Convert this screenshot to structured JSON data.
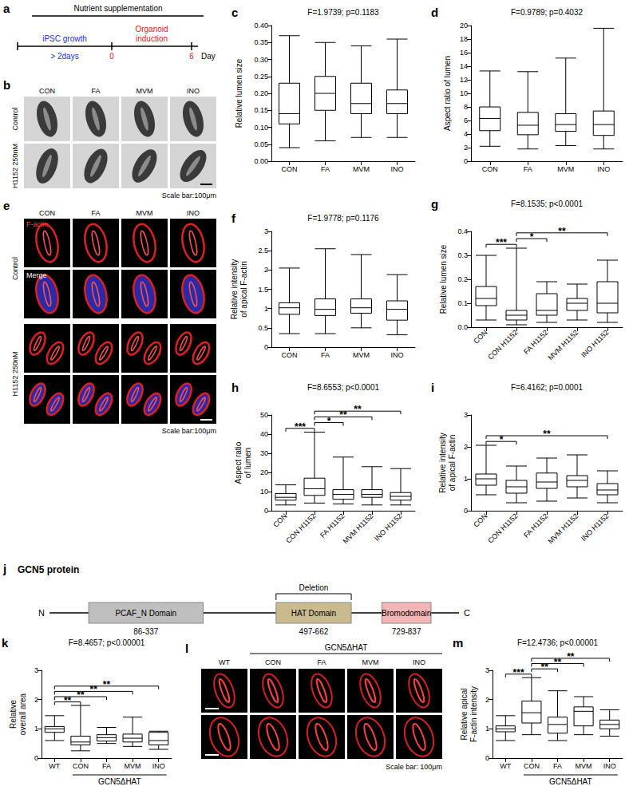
{
  "chart_data": [
    {
      "type": "boxplot",
      "panel_letter": "c",
      "title": "F=1.9739; p=0.1183",
      "y_label": "Relative lumen size",
      "categories": [
        "CON",
        "FA",
        "MVM",
        "INO"
      ],
      "values": [
        [
          0.04,
          0.11,
          0.14,
          0.23,
          0.37
        ],
        [
          0.06,
          0.15,
          0.2,
          0.25,
          0.35
        ],
        [
          0.07,
          0.14,
          0.17,
          0.23,
          0.34
        ],
        [
          0.07,
          0.14,
          0.17,
          0.21,
          0.36
        ]
      ],
      "color": "#000000",
      "ylim": [
        0,
        0.4
      ],
      "yticks": [
        {
          "value": 0,
          "label": "0.00"
        },
        0.05,
        {
          "value": 0.1,
          "label": "0.10"
        },
        0.15,
        {
          "value": 0.2,
          "label": "0.20"
        },
        0.25,
        {
          "value": 0.3,
          "label": "0.30"
        },
        0.35,
        {
          "value": 0.4,
          "label": "0.40"
        }
      ]
    },
    {
      "type": "boxplot",
      "panel_letter": "d",
      "title": "F=0.9789; p=0.4032",
      "y_label": "Aspect ratio of lumen",
      "categories": [
        "CON",
        "FA",
        "MVM",
        "INO"
      ],
      "values": [
        [
          2.2,
          4.5,
          6.3,
          8.0,
          13.3
        ],
        [
          1.8,
          3.9,
          5.3,
          7.2,
          13.2
        ],
        [
          2.3,
          4.4,
          5.4,
          7.0,
          15.2
        ],
        [
          1.8,
          3.8,
          5.4,
          7.4,
          19.6
        ]
      ],
      "color": "#000000",
      "ylim": [
        0,
        20
      ],
      "yticks": [
        0,
        2,
        4,
        6,
        8,
        10,
        12,
        14,
        16,
        18,
        20
      ]
    },
    {
      "type": "boxplot",
      "panel_letter": "f",
      "title": "F=1.9778; p=0.1176",
      "y_label": "Relative intensity of apical F-actin",
      "categories": [
        "CON",
        "FA",
        "MVM",
        "INO"
      ],
      "values": [
        [
          0.35,
          0.85,
          1.02,
          1.15,
          2.05
        ],
        [
          0.35,
          0.82,
          0.98,
          1.25,
          2.55
        ],
        [
          0.5,
          0.88,
          1.02,
          1.25,
          2.4
        ],
        [
          0.32,
          0.7,
          0.98,
          1.2,
          1.88
        ]
      ],
      "color": "#000000",
      "ylim": [
        0,
        3
      ],
      "yticks": [
        0,
        0.5,
        1,
        1.5,
        2,
        2.5,
        3
      ]
    },
    {
      "type": "boxplot",
      "panel_letter": "g",
      "title": "F=8.1535; p<0.0001",
      "y_label": "Relative lumen size",
      "categories": [
        "CON",
        "CON H1152",
        "FA H1152",
        "MVM H1152",
        "INO H1152"
      ],
      "values": [
        [
          0.03,
          0.09,
          0.12,
          0.17,
          0.3
        ],
        [
          0.01,
          0.03,
          0.05,
          0.07,
          0.33
        ],
        [
          0.02,
          0.05,
          0.07,
          0.14,
          0.19
        ],
        [
          0.03,
          0.07,
          0.1,
          0.12,
          0.18
        ],
        [
          0.02,
          0.06,
          0.1,
          0.19,
          0.28
        ]
      ],
      "color": "#000000",
      "ylim": [
        0,
        0.4
      ],
      "yticks": [
        {
          "value": 0,
          "label": "0.0"
        },
        0.1,
        0.2,
        0.3,
        0.4
      ],
      "significance": [
        {
          "from": "CON",
          "to": "CON H1152",
          "label": "***"
        },
        {
          "from": "CON H1152",
          "to": "FA H1152",
          "label": "*"
        },
        {
          "from": "CON H1152",
          "to": "INO H1152",
          "label": "**"
        }
      ]
    },
    {
      "type": "boxplot",
      "panel_letter": "h",
      "title": "F=8.6553; p<0.0001",
      "y_label": "Aspect ratio of lumen",
      "categories": [
        "CON",
        "CON H1152",
        "FA H1152",
        "MVM H1152",
        "INO H1152"
      ],
      "values": [
        [
          3,
          5.5,
          7,
          9,
          13.5
        ],
        [
          4,
          8,
          11.5,
          17,
          41
        ],
        [
          3.5,
          6,
          8.5,
          11,
          28
        ],
        [
          3,
          7,
          8.5,
          11,
          23
        ],
        [
          3,
          5.5,
          7.5,
          9.5,
          22
        ]
      ],
      "color": "#000000",
      "ylim": [
        0,
        50
      ],
      "yticks": [
        0,
        10,
        20,
        30,
        40,
        50
      ],
      "significance": [
        {
          "from": "CON",
          "to": "CON H1152",
          "label": "***"
        },
        {
          "from": "CON H1152",
          "to": "FA H1152",
          "label": "*"
        },
        {
          "from": "CON H1152",
          "to": "MVM H1152",
          "label": "**"
        },
        {
          "from": "CON H1152",
          "to": "INO H1152",
          "label": "**"
        }
      ]
    },
    {
      "type": "boxplot",
      "panel_letter": "i",
      "title": "F=6.4162; p=0.0001",
      "y_label": "Relative intensity of apical F-actin",
      "categories": [
        "CON",
        "CON H1152",
        "FA H1152",
        "MVM H1152",
        "INO H1152"
      ],
      "values": [
        [
          0.5,
          0.8,
          1.0,
          1.15,
          2.05
        ],
        [
          0.25,
          0.55,
          0.75,
          0.95,
          1.4
        ],
        [
          0.3,
          0.7,
          0.9,
          1.18,
          1.65
        ],
        [
          0.4,
          0.75,
          0.95,
          1.1,
          1.75
        ],
        [
          0.25,
          0.5,
          0.65,
          0.85,
          1.25
        ]
      ],
      "color": "#000000",
      "ylim": [
        0,
        3
      ],
      "yticks": [
        0,
        1,
        2,
        3
      ],
      "significance": [
        {
          "from": "CON",
          "to": "CON H1152",
          "label": "*"
        },
        {
          "from": "CON",
          "to": "INO H1152",
          "label": "**"
        }
      ]
    },
    {
      "type": "boxplot",
      "panel_letter": "k",
      "title": "F=8.4657; p<0.00001",
      "y_label": "Relative overall area",
      "categories": [
        "WT",
        "CON",
        "FA",
        "MVM",
        "INO"
      ],
      "category_group": {
        "label": "GCN5ΔHAT",
        "from": "CON",
        "to": "INO"
      },
      "values": [
        [
          0.6,
          0.88,
          1.0,
          1.08,
          1.45
        ],
        [
          0.25,
          0.45,
          0.55,
          0.75,
          1.8
        ],
        [
          0.5,
          0.58,
          0.7,
          0.8,
          1.05
        ],
        [
          0.4,
          0.55,
          0.68,
          0.82,
          1.4
        ],
        [
          0.3,
          0.45,
          0.6,
          0.88,
          0.92
        ]
      ],
      "color": "#000000",
      "ylim": [
        0,
        3
      ],
      "yticks": [
        0,
        1,
        2,
        3
      ],
      "significance": [
        {
          "from": "WT",
          "to": "CON",
          "label": "**"
        },
        {
          "from": "WT",
          "to": "FA",
          "label": "**"
        },
        {
          "from": "WT",
          "to": "MVM",
          "label": "**"
        },
        {
          "from": "WT",
          "to": "INO",
          "label": "**"
        }
      ]
    },
    {
      "type": "boxplot",
      "panel_letter": "m",
      "title": "F=12.4736; p<0.00001",
      "y_label": "Relative apical F-actin intensity",
      "categories": [
        "WT",
        "CON",
        "FA",
        "MVM",
        "INO"
      ],
      "category_group": {
        "label": "GCN5ΔHAT",
        "from": "CON",
        "to": "INO"
      },
      "values": [
        [
          0.6,
          0.9,
          1.0,
          1.1,
          1.45
        ],
        [
          0.8,
          1.2,
          1.55,
          1.95,
          2.75
        ],
        [
          0.6,
          0.85,
          1.15,
          1.4,
          2.3
        ],
        [
          0.8,
          1.1,
          1.6,
          1.75,
          2.1
        ],
        [
          0.75,
          1.0,
          1.15,
          1.3,
          1.65
        ]
      ],
      "color": "#000000",
      "ylim": [
        0,
        3
      ],
      "yticks": [
        0,
        1,
        2,
        3
      ],
      "significance": [
        {
          "from": "WT",
          "to": "CON",
          "label": "***"
        },
        {
          "from": "CON",
          "to": "FA",
          "label": "**"
        },
        {
          "from": "CON",
          "to": "MVM",
          "label": "**"
        },
        {
          "from": "CON",
          "to": "INO",
          "label": "**"
        }
      ]
    }
  ],
  "panel_a": {
    "letter": "a",
    "bar_label": "Nutrient supplementation",
    "phases": [
      {
        "label": "iPSC growth",
        "note": "> 2days",
        "color": "#1a2fd0"
      },
      {
        "label": "Organoid induction",
        "color": "#d42020"
      }
    ],
    "day_ticks": [
      0,
      6
    ],
    "day_tick_color": "#d42020",
    "axis_label": "Day"
  },
  "panel_b": {
    "letter": "b",
    "columns": [
      "CON",
      "FA",
      "MVM",
      "INO"
    ],
    "rows": [
      "Control",
      "H1152 250nM"
    ],
    "scale_bar": "Scale bar:100μm"
  },
  "panel_e": {
    "letter": "e",
    "columns": [
      "CON",
      "FA",
      "MVM",
      "INO"
    ],
    "row_groups": [
      "Control",
      "H1152 250nM"
    ],
    "channels": [
      {
        "label": "F-actin",
        "color": "#ff3b3b"
      },
      {
        "label": "Merge",
        "color": "#ffffff"
      }
    ],
    "scale_bar": "Scale bar:100μm"
  },
  "panel_j": {
    "letter": "j",
    "title": "GCN5 protein",
    "start_label": "N",
    "end_label": "C",
    "domains": [
      {
        "label": "PCAF_N Domain",
        "start": 86,
        "end": 337,
        "range_label": "86-337",
        "color": "#bfbfbf"
      },
      {
        "label": "HAT Domain",
        "start": 497,
        "end": 662,
        "range_label": "497-662",
        "color": "#c9bb8e",
        "annotation": "Deletion"
      },
      {
        "label": "Bromodomain",
        "start": 729,
        "end": 837,
        "range_label": "729-837",
        "color": "#f3b5b5"
      }
    ]
  },
  "panel_l": {
    "letter": "l",
    "group_label": "GCN5ΔHAT",
    "columns": [
      "WT",
      "CON",
      "FA",
      "MVM",
      "INO"
    ],
    "group_columns": [
      "CON",
      "FA",
      "MVM",
      "INO"
    ],
    "scale_bar": "Scale bar: 100μm"
  }
}
